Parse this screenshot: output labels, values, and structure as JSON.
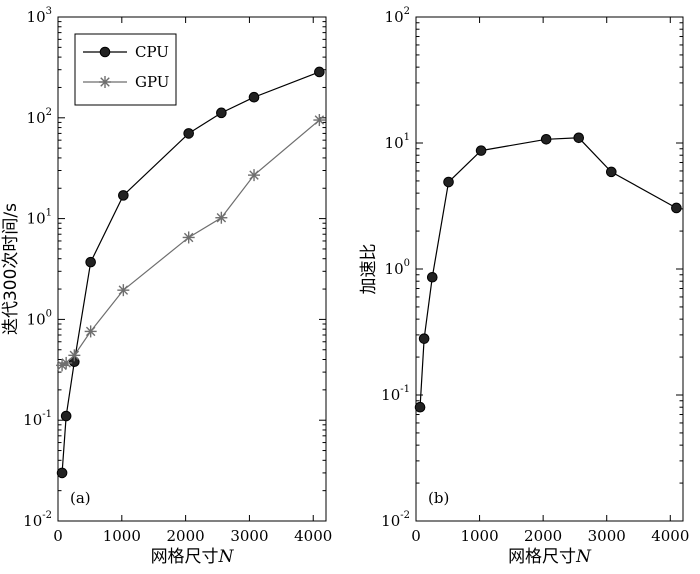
{
  "chart_data": [
    {
      "panel": "(a)",
      "type": "line",
      "yscale": "log",
      "x": [
        64,
        128,
        256,
        512,
        1024,
        2048,
        2560,
        3072,
        4096
      ],
      "series": [
        {
          "name": "CPU",
          "marker": "circle",
          "color": "#000000",
          "values": [
            0.03,
            0.11,
            0.38,
            3.7,
            17,
            70,
            112,
            160,
            285
          ]
        },
        {
          "name": "GPU",
          "marker": "star",
          "color": "#6e6e6e",
          "values": [
            0.35,
            0.37,
            0.44,
            0.76,
            1.95,
            6.5,
            10.2,
            27,
            95
          ]
        }
      ],
      "xlabel": "网格尺寸N",
      "ylabel": "迭代300次时间/s",
      "xlim": [
        0,
        4200
      ],
      "ylim": [
        0.01,
        1000
      ],
      "xticks": [
        "0",
        "1000",
        "2000",
        "3000",
        "4000"
      ],
      "yticks": [
        {
          "base": "10",
          "exp": "-2"
        },
        {
          "base": "10",
          "exp": "-1"
        },
        {
          "base": "10",
          "exp": "0"
        },
        {
          "base": "10",
          "exp": "1"
        },
        {
          "base": "10",
          "exp": "2"
        },
        {
          "base": "10",
          "exp": "3"
        }
      ],
      "legend": {
        "location": "top-left",
        "entries": [
          "CPU",
          "GPU"
        ]
      }
    },
    {
      "panel": "(b)",
      "type": "line",
      "yscale": "log",
      "x": [
        64,
        128,
        256,
        512,
        1024,
        2048,
        2560,
        3072,
        4096
      ],
      "series": [
        {
          "name": "加速比",
          "marker": "circle",
          "color": "#000000",
          "values": [
            0.08,
            0.28,
            0.86,
            4.9,
            8.7,
            10.7,
            11,
            5.9,
            3.05
          ]
        }
      ],
      "xlabel": "网格尺寸N",
      "ylabel": "加速比",
      "xlim": [
        0,
        4200
      ],
      "ylim": [
        0.01,
        100
      ],
      "xticks": [
        "0",
        "1000",
        "2000",
        "3000",
        "4000"
      ],
      "yticks": [
        {
          "base": "10",
          "exp": "-2"
        },
        {
          "base": "10",
          "exp": "-1"
        },
        {
          "base": "10",
          "exp": "0"
        },
        {
          "base": "10",
          "exp": "1"
        },
        {
          "base": "10",
          "exp": "2"
        }
      ]
    }
  ]
}
